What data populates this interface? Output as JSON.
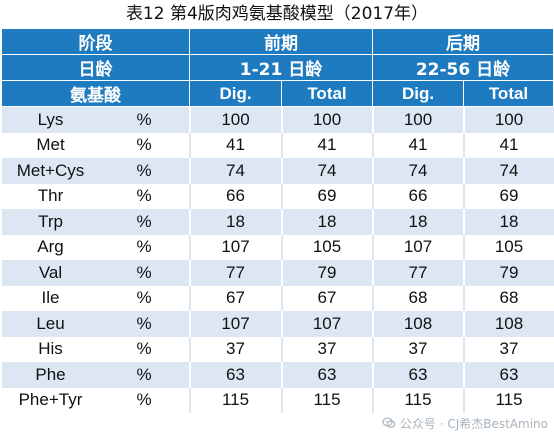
{
  "title": "表12 第4版肉鸡氨基酸模型（2017年）",
  "header": {
    "stage_label": "阶段",
    "age_label": "日龄",
    "aa_label": "氨基酸",
    "phase1": "前期",
    "phase1_age": "1-21 日龄",
    "phase2": "后期",
    "phase2_age": "22-56 日龄",
    "dig": "Dig.",
    "total": "Total"
  },
  "rows": [
    {
      "aa": "Lys",
      "unit": "%",
      "p1_dig": "100",
      "p1_total": "100",
      "p2_dig": "100",
      "p2_total": "100"
    },
    {
      "aa": "Met",
      "unit": "%",
      "p1_dig": "41",
      "p1_total": "41",
      "p2_dig": "41",
      "p2_total": "41"
    },
    {
      "aa": "Met+Cys",
      "unit": "%",
      "p1_dig": "74",
      "p1_total": "74",
      "p2_dig": "74",
      "p2_total": "74"
    },
    {
      "aa": "Thr",
      "unit": "%",
      "p1_dig": "66",
      "p1_total": "69",
      "p2_dig": "66",
      "p2_total": "69"
    },
    {
      "aa": "Trp",
      "unit": "%",
      "p1_dig": "18",
      "p1_total": "18",
      "p2_dig": "18",
      "p2_total": "18"
    },
    {
      "aa": "Arg",
      "unit": "%",
      "p1_dig": "107",
      "p1_total": "105",
      "p2_dig": "107",
      "p2_total": "105"
    },
    {
      "aa": "Val",
      "unit": "%",
      "p1_dig": "77",
      "p1_total": "79",
      "p2_dig": "77",
      "p2_total": "79"
    },
    {
      "aa": "Ile",
      "unit": "%",
      "p1_dig": "67",
      "p1_total": "67",
      "p2_dig": "68",
      "p2_total": "68"
    },
    {
      "aa": "Leu",
      "unit": "%",
      "p1_dig": "107",
      "p1_total": "107",
      "p2_dig": "108",
      "p2_total": "108"
    },
    {
      "aa": "His",
      "unit": "%",
      "p1_dig": "37",
      "p1_total": "37",
      "p2_dig": "37",
      "p2_total": "37"
    },
    {
      "aa": "Phe",
      "unit": "%",
      "p1_dig": "63",
      "p1_total": "63",
      "p2_dig": "63",
      "p2_total": "63"
    },
    {
      "aa": "Phe+Tyr",
      "unit": "%",
      "p1_dig": "115",
      "p1_total": "115",
      "p2_dig": "115",
      "p2_total": "115"
    }
  ],
  "watermark": {
    "text": "公众号 · CJ希杰BestAmino",
    "icon": "wechat-icon"
  },
  "colors": {
    "header_bg": "#1f7bc0",
    "stripe": "#dce7f3"
  }
}
